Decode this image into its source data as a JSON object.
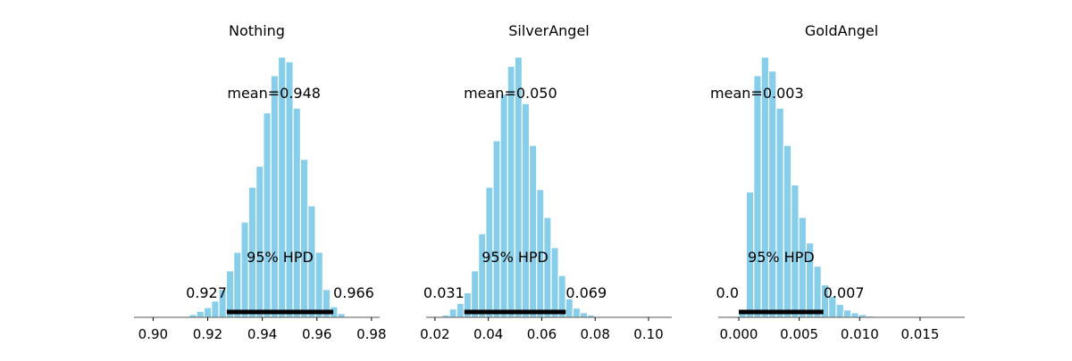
{
  "colors": {
    "bar_fill": "#87CEEB",
    "bar_edge": "#ffffff",
    "hpd_line": "#000000",
    "axis": "#000000"
  },
  "chart_data": [
    {
      "type": "bar",
      "title": "Nothing",
      "mean_label": "mean=0.948",
      "hpd_label": "95% HPD",
      "hpd_low_label": "0.927",
      "hpd_high_label": "0.966",
      "hpd": [
        0.927,
        0.966
      ],
      "xlim": [
        0.893,
        0.983
      ],
      "xticks": [
        "0.90",
        "0.92",
        "0.94",
        "0.96",
        "0.98"
      ],
      "xtick_values": [
        0.9,
        0.92,
        0.94,
        0.96,
        0.98
      ],
      "bin_start": 0.9105,
      "bin_width": 0.00272,
      "values": [
        0.2,
        0.6,
        1.3,
        2.1,
        3.5,
        6.0,
        10.0,
        14.0,
        20.5,
        28.0,
        32.5,
        44.0,
        52.0,
        56.0,
        55.0,
        45.0,
        34.0,
        24.0,
        14.0,
        6.0,
        2.3,
        0.8,
        0.2
      ]
    },
    {
      "type": "bar",
      "title": "SilverAngel",
      "mean_label": "mean=0.050",
      "hpd_label": "95% HPD",
      "hpd_low_label": "0.031",
      "hpd_high_label": "0.069",
      "hpd": [
        0.031,
        0.069
      ],
      "xlim": [
        0.0167,
        0.1087
      ],
      "xticks": [
        "0.02",
        "0.04",
        "0.06",
        "0.08",
        "0.10"
      ],
      "xtick_values": [
        0.02,
        0.04,
        0.06,
        0.08,
        0.1
      ],
      "bin_start": 0.02,
      "bin_width": 0.00272,
      "values": [
        0.2,
        0.5,
        1.8,
        3.0,
        5.3,
        10.0,
        18.0,
        28.0,
        38.0,
        48.0,
        54.0,
        56.0,
        46.0,
        37.0,
        27.5,
        21.5,
        15.0,
        9.0,
        4.0,
        2.0,
        1.0,
        0.5,
        0.2
      ]
    },
    {
      "type": "bar",
      "title": "GoldAngel",
      "mean_label": "mean=0.003",
      "hpd_label": "95% HPD",
      "hpd_low_label": "0.0",
      "hpd_high_label": "0.007",
      "hpd": [
        0.0,
        0.007
      ],
      "xlim": [
        -0.0017,
        0.0187
      ],
      "xticks": [
        "0.000",
        "0.005",
        "0.010",
        "0.015"
      ],
      "xtick_values": [
        0.0,
        0.005,
        0.01,
        0.015
      ],
      "bin_start": 0.0,
      "bin_width": 0.00062,
      "values": [
        1.0,
        27.0,
        52.0,
        56.0,
        53.0,
        45.0,
        37.0,
        28.5,
        21.5,
        16.0,
        11.0,
        7.0,
        4.5,
        2.8,
        1.6,
        1.0,
        0.6,
        0.3
      ]
    }
  ]
}
